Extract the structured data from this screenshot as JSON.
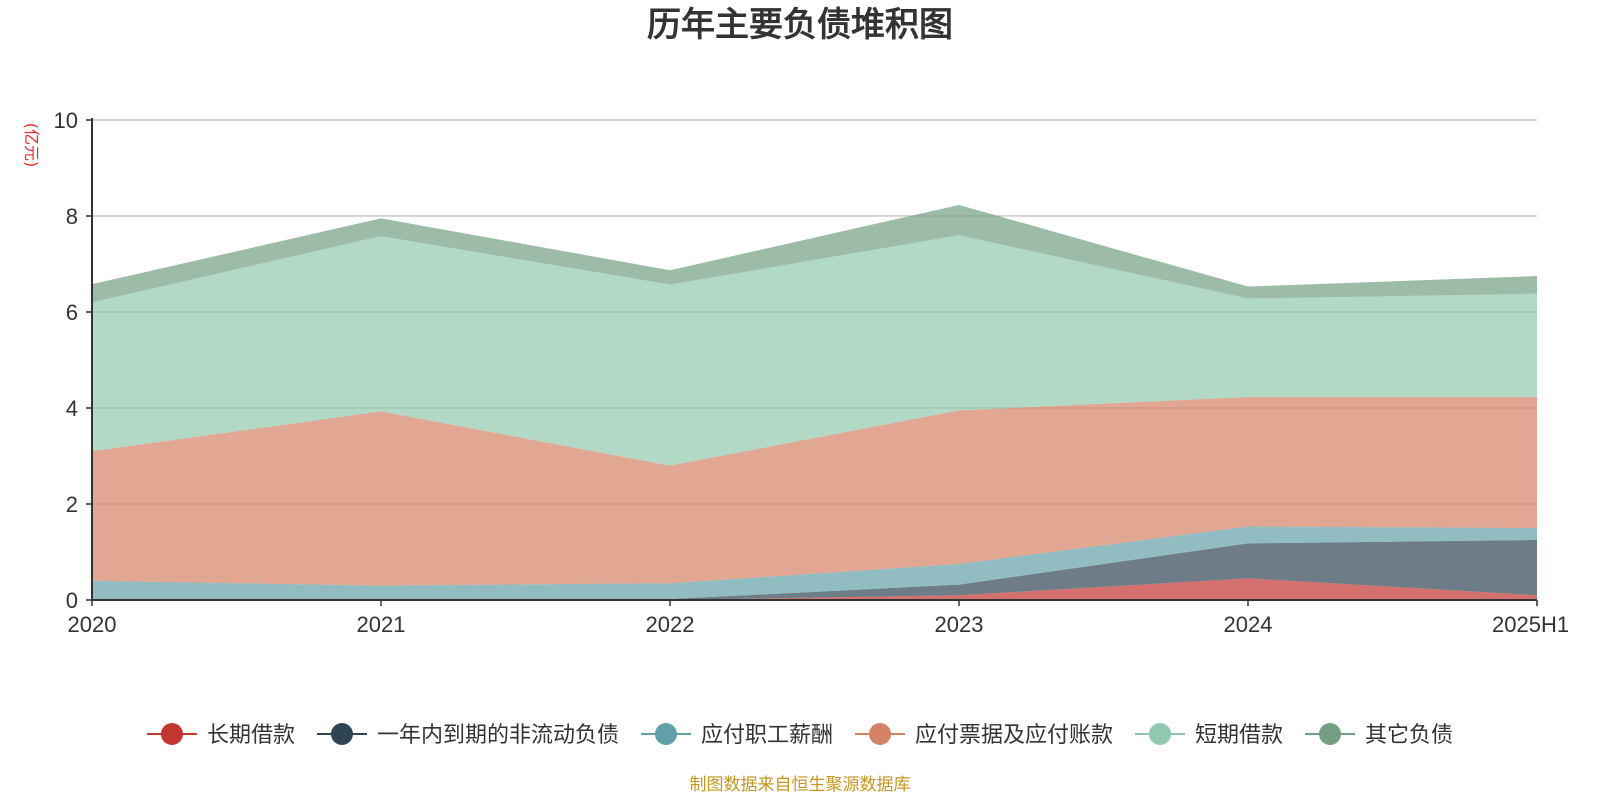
{
  "chart_data": {
    "type": "area",
    "stacked": true,
    "title": "历年主要负债堆积图",
    "unit_label": "(亿元)",
    "categories": [
      "2020",
      "2021",
      "2022",
      "2023",
      "2024",
      "2025H1"
    ],
    "ylim": [
      0,
      10
    ],
    "yticks": [
      "0",
      "2",
      "4",
      "6",
      "8",
      "10"
    ],
    "grid": true,
    "legend_position": "bottom",
    "series": [
      {
        "name": "长期借款",
        "color": "#c23531",
        "values": [
          0,
          0,
          0,
          0.1,
          0.45,
          0.1
        ]
      },
      {
        "name": "一年内到期的非流动负债",
        "color": "#2f4554",
        "values": [
          0,
          0,
          0.02,
          0.22,
          0.73,
          1.15
        ]
      },
      {
        "name": "应付职工薪酬",
        "color": "#61a0a8",
        "values": [
          0.4,
          0.3,
          0.33,
          0.43,
          0.35,
          0.25
        ]
      },
      {
        "name": "应付票据及应付账款",
        "color": "#d48265",
        "values": [
          2.7,
          3.63,
          2.45,
          3.2,
          2.7,
          2.73
        ]
      },
      {
        "name": "短期借款",
        "color": "#91c7ae",
        "values": [
          3.1,
          3.65,
          3.77,
          3.65,
          2.05,
          2.15
        ]
      },
      {
        "name": "其它负债",
        "color": "#749f83",
        "values": [
          0.38,
          0.37,
          0.3,
          0.63,
          0.25,
          0.37
        ]
      }
    ]
  },
  "footer": {
    "source": "制图数据来自恒生聚源数据库"
  }
}
